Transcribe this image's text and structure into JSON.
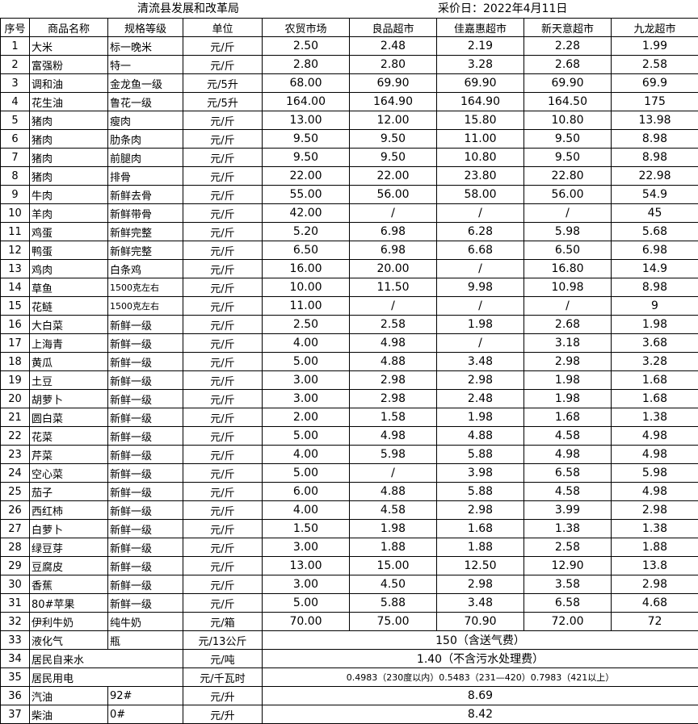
{
  "header": {
    "org": "清流县发展和改革局",
    "date": "采价日：2022年4月11日"
  },
  "columns": [
    "序号",
    "商品名称",
    "规格等级",
    "单位",
    "农贸市场",
    "良品超市",
    "佳嘉惠超市",
    "新天意超市",
    "九龙超市"
  ],
  "rows": [
    [
      "1",
      "大米",
      "标一晚米",
      "元/斤",
      "2.50",
      "2.48",
      "2.19",
      "2.28",
      "1.99"
    ],
    [
      "2",
      "富强粉",
      "特一",
      "元/斤",
      "2.80",
      "2.80",
      "3.28",
      "2.68",
      "2.58"
    ],
    [
      "3",
      "调和油",
      "金龙鱼一级",
      "元/5升",
      "68.00",
      "69.90",
      "69.90",
      "69.90",
      "69.9"
    ],
    [
      "4",
      "花生油",
      "鲁花一级",
      "元/5升",
      "164.00",
      "164.90",
      "164.90",
      "164.50",
      "175"
    ],
    [
      "5",
      "猪肉",
      "瘦肉",
      "元/斤",
      "13.00",
      "12.00",
      "15.80",
      "10.80",
      "13.98"
    ],
    [
      "6",
      "猪肉",
      "肋条肉",
      "元/斤",
      "9.50",
      "9.50",
      "11.00",
      "9.50",
      "8.98"
    ],
    [
      "7",
      "猪肉",
      "前腿肉",
      "元/斤",
      "9.50",
      "9.50",
      "10.80",
      "9.50",
      "8.98"
    ],
    [
      "8",
      "猪肉",
      "排骨",
      "元/斤",
      "22.00",
      "22.00",
      "23.80",
      "22.80",
      "22.98"
    ],
    [
      "9",
      "牛肉",
      "新鲜去骨",
      "元/斤",
      "55.00",
      "56.00",
      "58.00",
      "56.00",
      "54.9"
    ],
    [
      "10",
      "羊肉",
      "新鲜带骨",
      "元/斤",
      "42.00",
      "/",
      "/",
      "/",
      "45"
    ],
    [
      "11",
      "鸡蛋",
      "新鲜完整",
      "元/斤",
      "5.20",
      "6.98",
      "6.28",
      "5.98",
      "5.68"
    ],
    [
      "12",
      "鸭蛋",
      "新鲜完整",
      "元/斤",
      "6.50",
      "6.98",
      "6.68",
      "6.50",
      "6.98"
    ],
    [
      "13",
      "鸡肉",
      "白条鸡",
      "元/斤",
      "16.00",
      "20.00",
      "/",
      "16.80",
      "14.9"
    ],
    [
      "14",
      "草鱼",
      "1500克左右",
      "元/斤",
      "10.00",
      "11.50",
      "9.98",
      "10.98",
      "8.98"
    ],
    [
      "15",
      "花鲢",
      "1500克左右",
      "元/斤",
      "11.00",
      "/",
      "/",
      "/",
      "9"
    ],
    [
      "16",
      "大白菜",
      "新鲜一级",
      "元/斤",
      "2.50",
      "2.58",
      "1.98",
      "2.68",
      "1.98"
    ],
    [
      "17",
      "上海青",
      "新鲜一级",
      "元/斤",
      "4.00",
      "4.98",
      "/",
      "3.18",
      "3.68"
    ],
    [
      "18",
      "黄瓜",
      "新鲜一级",
      "元/斤",
      "5.00",
      "4.88",
      "3.48",
      "2.98",
      "3.28"
    ],
    [
      "19",
      "土豆",
      "新鲜一级",
      "元/斤",
      "3.00",
      "2.98",
      "2.98",
      "1.98",
      "1.68"
    ],
    [
      "20",
      "胡萝卜",
      "新鲜一级",
      "元/斤",
      "3.00",
      "2.98",
      "2.48",
      "1.98",
      "1.68"
    ],
    [
      "21",
      "圆白菜",
      "新鲜一级",
      "元/斤",
      "2.00",
      "1.58",
      "1.98",
      "1.68",
      "1.38"
    ],
    [
      "22",
      "花菜",
      "新鲜一级",
      "元/斤",
      "5.00",
      "4.98",
      "4.88",
      "4.58",
      "4.98"
    ],
    [
      "23",
      "芹菜",
      "新鲜一级",
      "元/斤",
      "4.00",
      "5.98",
      "5.88",
      "4.98",
      "4.98"
    ],
    [
      "24",
      "空心菜",
      "新鲜一级",
      "元/斤",
      "5.00",
      "/",
      "3.98",
      "6.58",
      "5.98"
    ],
    [
      "25",
      "茄子",
      "新鲜一级",
      "元/斤",
      "6.00",
      "4.88",
      "5.88",
      "4.58",
      "4.98"
    ],
    [
      "26",
      "西红柿",
      "新鲜一级",
      "元/斤",
      "4.00",
      "4.58",
      "2.98",
      "3.99",
      "2.98"
    ],
    [
      "27",
      "白萝卜",
      "新鲜一级",
      "元/斤",
      "1.50",
      "1.98",
      "1.68",
      "1.38",
      "1.38"
    ],
    [
      "28",
      "绿豆芽",
      "新鲜一级",
      "元/斤",
      "3.00",
      "1.88",
      "1.88",
      "2.58",
      "1.88"
    ],
    [
      "29",
      "豆腐皮",
      "新鲜一级",
      "元/斤",
      "13.00",
      "15.00",
      "12.50",
      "12.90",
      "13.8"
    ],
    [
      "30",
      "香蕉",
      "新鲜一级",
      "元/斤",
      "3.00",
      "4.50",
      "2.98",
      "3.58",
      "2.98"
    ],
    [
      "31",
      "80#苹果",
      "新鲜一级",
      "元/斤",
      "5.00",
      "5.88",
      "3.48",
      "6.58",
      "4.68"
    ],
    [
      "32",
      "伊利牛奶",
      "纯牛奶",
      "元/箱",
      "70.00",
      "75.00",
      "70.90",
      "72.00",
      "72"
    ]
  ],
  "merged_rows": [
    {
      "no": "33",
      "name": "液化气",
      "spec": "瓶",
      "unit": "元/13公斤",
      "price": "150（含送气费）"
    },
    {
      "no": "34",
      "name": "居民自来水",
      "spec": "",
      "unit": "元/吨",
      "price": "1.40（不含污水处理费）"
    },
    {
      "no": "35",
      "name": "居民用电",
      "spec": "",
      "unit": "元/千瓦时",
      "price": "0.4983（230度以内）0.5483（231—420）0.7983（421以上）"
    },
    {
      "no": "36",
      "name": "汽油",
      "spec": "92#",
      "unit": "元/升",
      "price": "8.69"
    },
    {
      "no": "37",
      "name": "柴油",
      "spec": "0#",
      "unit": "元/升",
      "price": "8.42"
    }
  ]
}
